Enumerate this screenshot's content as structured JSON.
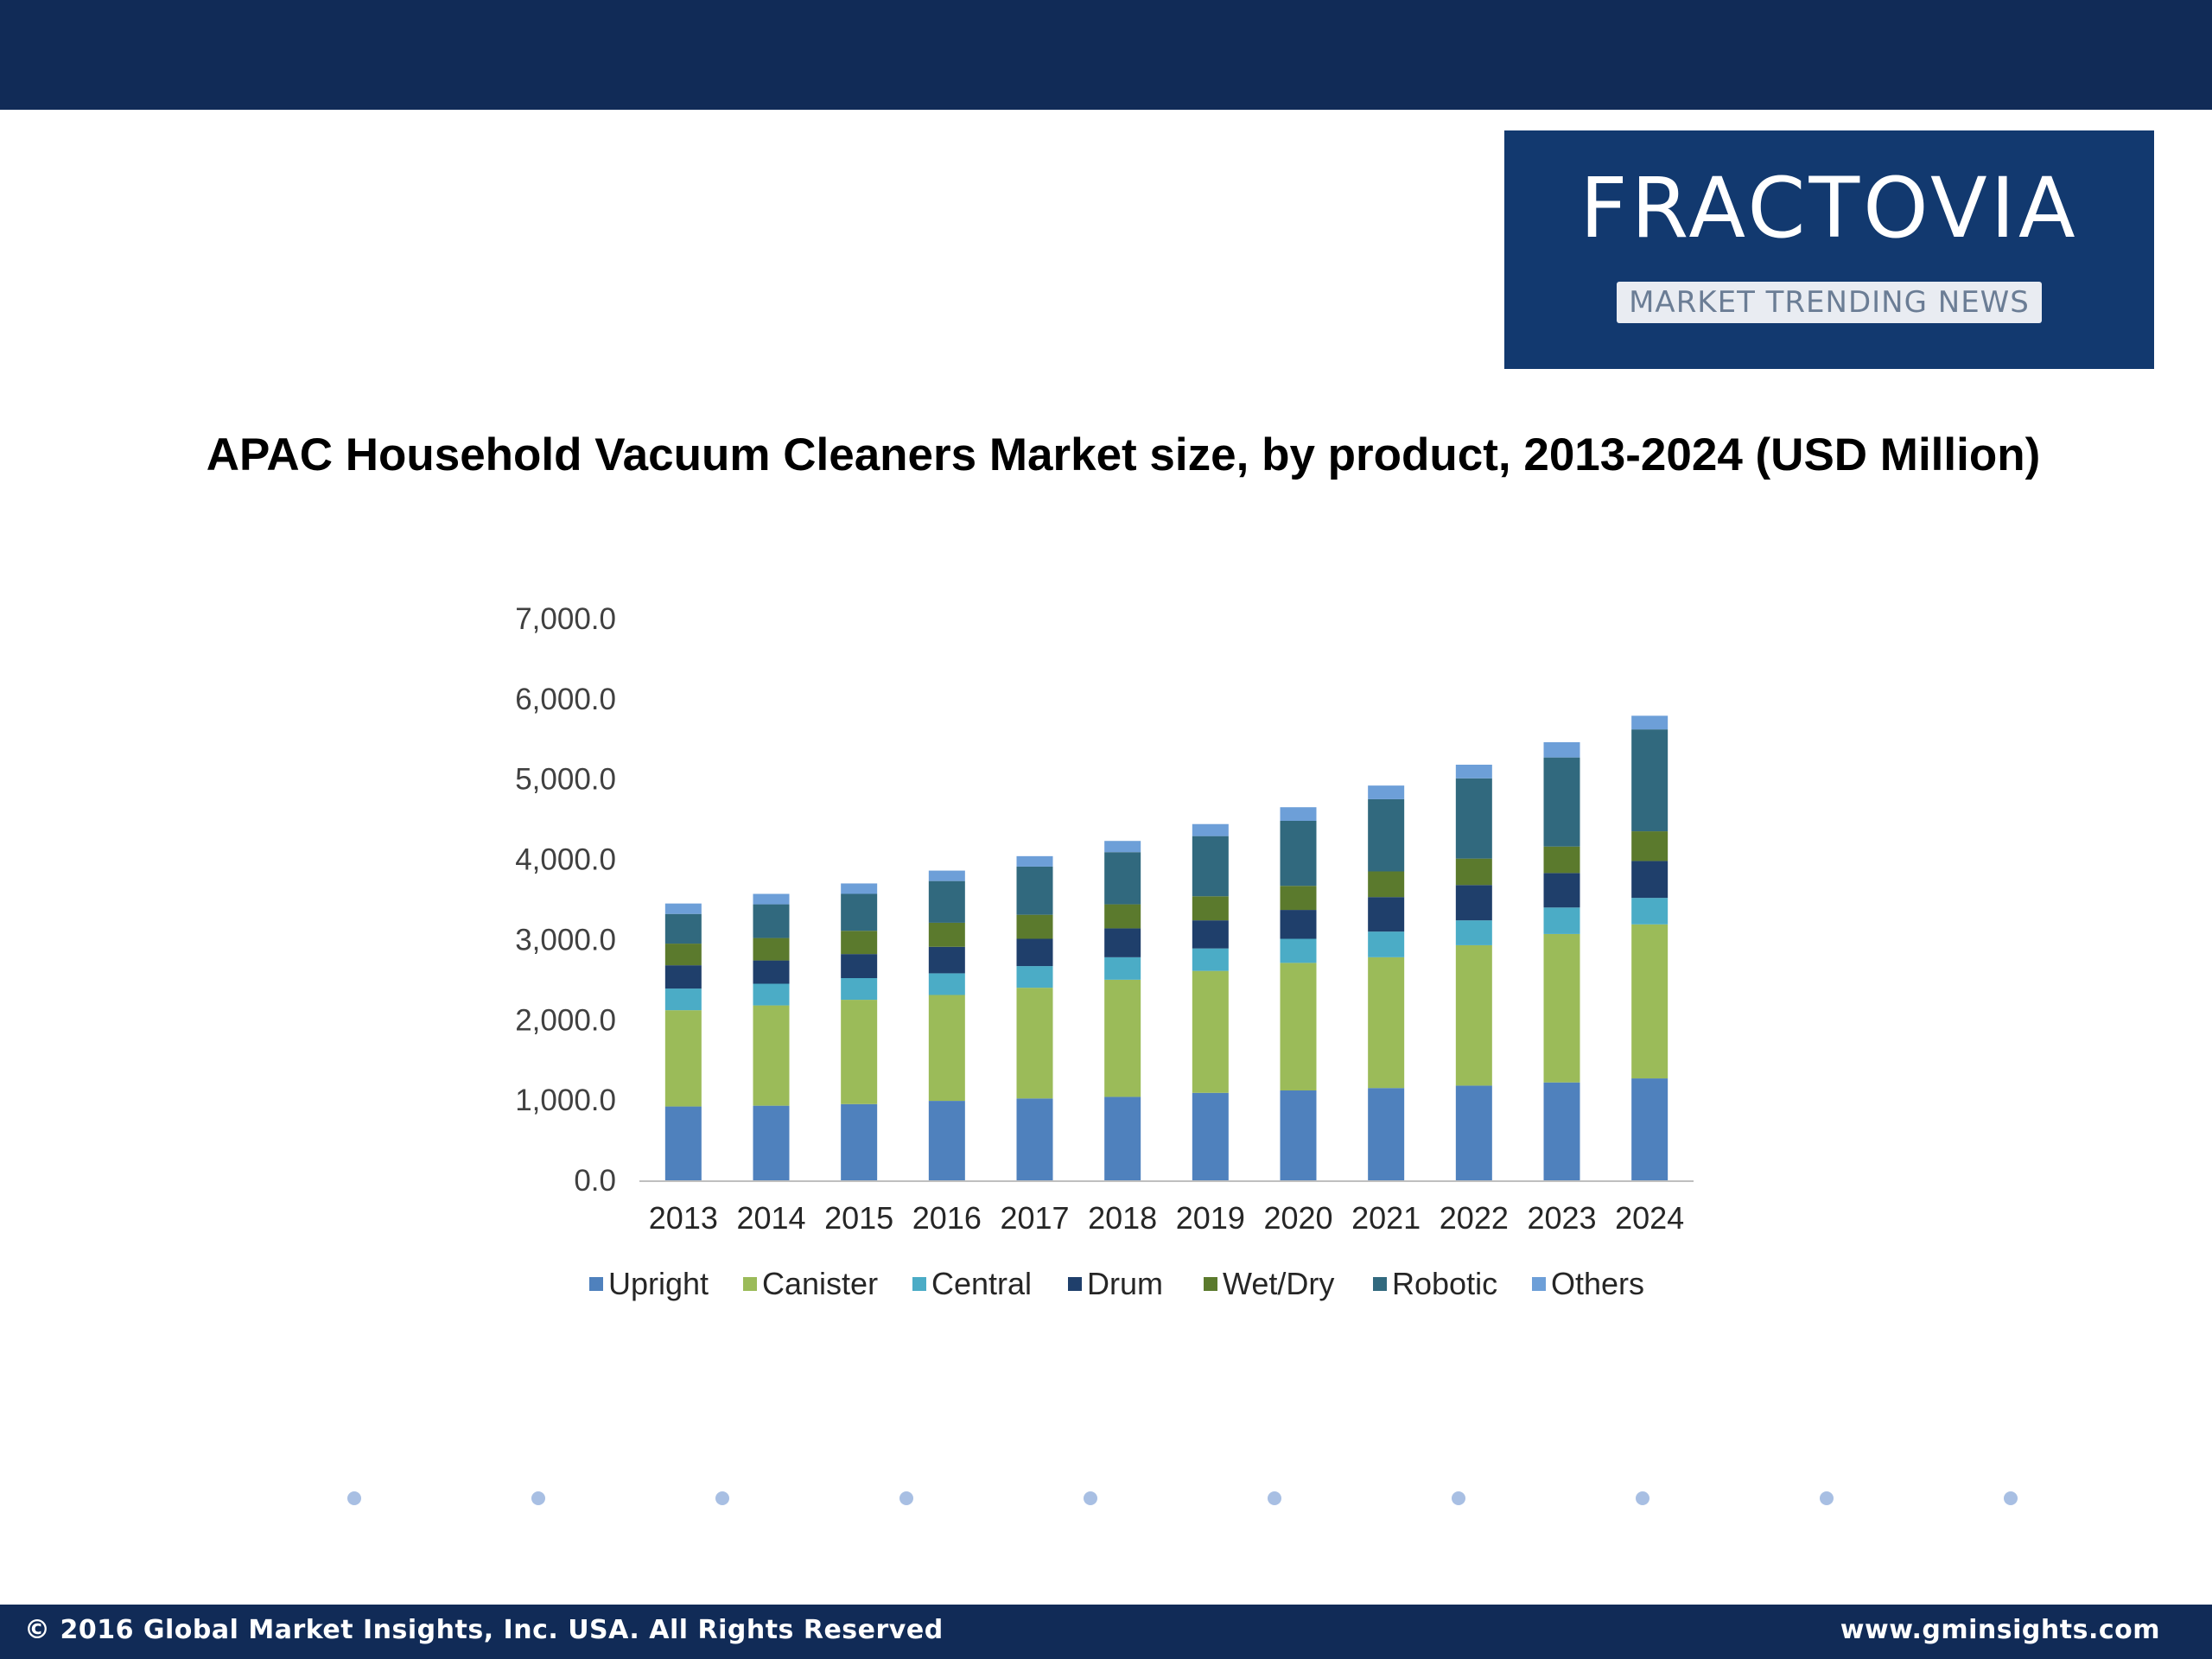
{
  "logo": {
    "name": "FRACTOVIA",
    "tagline": "MARKET TRENDING NEWS"
  },
  "footer": {
    "copyright": "© 2016 Global Market Insights, Inc. USA.  All Rights Reserved",
    "website": "www.gminsights.com"
  },
  "colors": {
    "header_bg": "#112b57",
    "logo_bg": "#12396f"
  },
  "chart_data": {
    "type": "bar",
    "stacked": true,
    "title": "APAC Household Vacuum Cleaners Market size, by product, 2013-2024 (USD Million)",
    "xlabel": "",
    "ylabel": "",
    "ylim": [
      0,
      7000
    ],
    "yticks": [
      "0.0",
      "1,000.0",
      "2,000.0",
      "3,000.0",
      "4,000.0",
      "5,000.0",
      "6,000.0",
      "7,000.0"
    ],
    "grid": false,
    "legend_position": "bottom",
    "categories": [
      "2013",
      "2014",
      "2015",
      "2016",
      "2017",
      "2018",
      "2019",
      "2020",
      "2021",
      "2022",
      "2023",
      "2024"
    ],
    "series": [
      {
        "name": "Upright",
        "color": "#4f81bd",
        "values": [
          920,
          930,
          950,
          990,
          1020,
          1040,
          1090,
          1120,
          1150,
          1180,
          1220,
          1270
        ]
      },
      {
        "name": "Canister",
        "color": "#9bbb59",
        "values": [
          1200,
          1250,
          1300,
          1320,
          1380,
          1460,
          1520,
          1590,
          1630,
          1750,
          1850,
          1920
        ]
      },
      {
        "name": "Central",
        "color": "#4bacc6",
        "values": [
          270,
          270,
          270,
          270,
          270,
          280,
          280,
          300,
          320,
          310,
          330,
          330
        ]
      },
      {
        "name": "Drum",
        "color": "#1f3f6b",
        "values": [
          290,
          290,
          300,
          330,
          340,
          360,
          350,
          360,
          430,
          440,
          430,
          460
        ]
      },
      {
        "name": "Wet/Dry",
        "color": "#5b7a2d",
        "values": [
          270,
          280,
          290,
          300,
          300,
          300,
          300,
          300,
          320,
          330,
          330,
          370
        ]
      },
      {
        "name": "Robotic",
        "color": "#31697e",
        "values": [
          370,
          420,
          460,
          520,
          600,
          650,
          750,
          810,
          900,
          1000,
          1110,
          1270
        ]
      },
      {
        "name": "Others",
        "color": "#6d9fd8",
        "values": [
          130,
          130,
          130,
          130,
          130,
          140,
          150,
          170,
          170,
          170,
          190,
          170
        ]
      }
    ]
  }
}
